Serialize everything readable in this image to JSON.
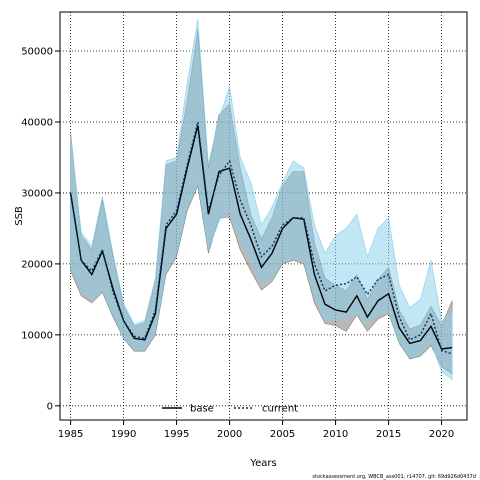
{
  "chart_data": {
    "type": "line",
    "xlabel": "Years",
    "ylabel": "SSB",
    "xlim": [
      1984.0,
      2022.4
    ],
    "ylim": [
      -2000,
      55500
    ],
    "xticks": [
      1985,
      1990,
      1995,
      2000,
      2005,
      2010,
      2015,
      2020
    ],
    "yticks": [
      0,
      10000,
      20000,
      30000,
      40000,
      50000
    ],
    "grid": true,
    "grid_style": "dotted",
    "legend_position": "bottom-center",
    "footnote": "stockassessment.org, WBCB_ass001, r14707, git: 69d926d0437d",
    "x": [
      1985,
      1986,
      1987,
      1988,
      1989,
      1990,
      1991,
      1992,
      1993,
      1994,
      1995,
      1996,
      1997,
      1998,
      1999,
      2000,
      2001,
      2002,
      2003,
      2004,
      2005,
      2006,
      2007,
      2008,
      2009,
      2010,
      2011,
      2012,
      2013,
      2014,
      2015,
      2016,
      2017,
      2018,
      2019,
      2020,
      2021
    ],
    "series": [
      {
        "name": "base",
        "color": "#000000",
        "band_color": "#808080",
        "values": [
          30000,
          20500,
          18500,
          21800,
          16500,
          12000,
          9500,
          9300,
          13000,
          25000,
          27000,
          33500,
          39500,
          27000,
          33000,
          33500,
          27000,
          23500,
          19500,
          21500,
          25000,
          26500,
          26300,
          18500,
          14300,
          13500,
          13200,
          15500,
          12500,
          14800,
          15800,
          11000,
          8800,
          9200,
          11200,
          8000,
          8200
        ],
        "lower": [
          19000,
          15500,
          14500,
          16000,
          12500,
          9500,
          7700,
          7700,
          10000,
          18500,
          21000,
          27500,
          31000,
          21500,
          26500,
          26600,
          22000,
          19000,
          16300,
          17500,
          20000,
          20500,
          20000,
          14500,
          11600,
          11300,
          10500,
          12800,
          10500,
          12200,
          13000,
          8800,
          6600,
          7000,
          8500,
          5500,
          4500
        ],
        "upper": [
          38500,
          24000,
          22000,
          29000,
          21000,
          14000,
          11200,
          11700,
          17500,
          34000,
          34500,
          43000,
          53000,
          33500,
          41000,
          42500,
          33500,
          27000,
          23500,
          26500,
          31000,
          33000,
          33000,
          23000,
          18000,
          17000,
          16200,
          18500,
          15000,
          17800,
          19500,
          13500,
          10800,
          11400,
          14000,
          11300,
          14800
        ]
      },
      {
        "name": "current",
        "color": "#003366",
        "band_color": "#87CEEB",
        "values": [
          30000,
          20500,
          19000,
          22000,
          16000,
          12000,
          9800,
          9500,
          13500,
          25500,
          27500,
          34000,
          40000,
          27500,
          32500,
          34500,
          29000,
          25500,
          21000,
          22500,
          25500,
          26500,
          26500,
          20000,
          16200,
          17000,
          17200,
          18200,
          15700,
          17800,
          18500,
          12500,
          9300,
          10000,
          13000,
          7800,
          7300
        ],
        "lower": [
          20000,
          16000,
          15000,
          16500,
          12800,
          9600,
          8000,
          7900,
          10500,
          19000,
          21500,
          28000,
          31500,
          22000,
          26000,
          27500,
          23500,
          20500,
          17200,
          18000,
          20500,
          20700,
          20700,
          15500,
          12000,
          12300,
          12400,
          13200,
          11500,
          13000,
          13200,
          9000,
          6800,
          7300,
          9000,
          4800,
          3700
        ],
        "upper": [
          38000,
          24500,
          22500,
          29500,
          21500,
          14500,
          11500,
          12000,
          18000,
          34500,
          35000,
          45500,
          54500,
          34000,
          40500,
          45000,
          35000,
          31500,
          25500,
          28000,
          31500,
          34500,
          33500,
          25500,
          21500,
          24000,
          25000,
          27000,
          21000,
          25000,
          26500,
          17000,
          13800,
          15000,
          20500,
          12000,
          13000
        ]
      }
    ]
  }
}
